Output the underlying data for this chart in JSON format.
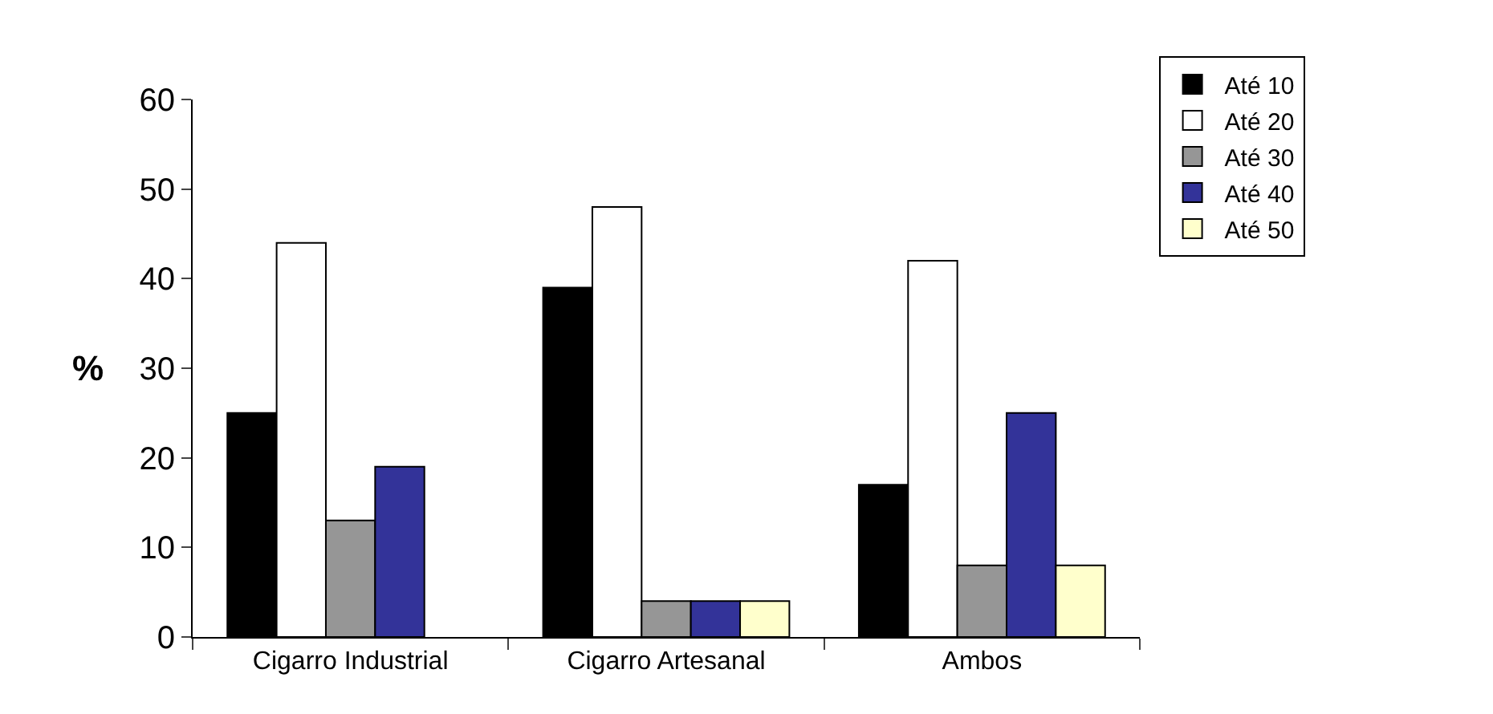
{
  "chart_data": {
    "type": "bar",
    "ylabel": "%",
    "categories": [
      "Cigarro Industrial",
      "Cigarro Artesanal",
      "Ambos"
    ],
    "series": [
      {
        "name": "Até 10",
        "color": "#000000",
        "values": [
          25,
          39,
          17
        ]
      },
      {
        "name": "Até 20",
        "color": "#ffffff",
        "values": [
          44,
          48,
          42
        ]
      },
      {
        "name": "Até 30",
        "color": "#969696",
        "values": [
          13,
          4,
          8
        ]
      },
      {
        "name": "Até 40",
        "color": "#333399",
        "values": [
          19,
          4,
          25
        ]
      },
      {
        "name": "Até 50",
        "color": "#ffffcc",
        "values": [
          null,
          4,
          8
        ]
      }
    ],
    "ylim": [
      0,
      60
    ],
    "yticks": [
      0,
      10,
      20,
      30,
      40,
      50,
      60
    ],
    "grid": false,
    "legend": "right"
  }
}
